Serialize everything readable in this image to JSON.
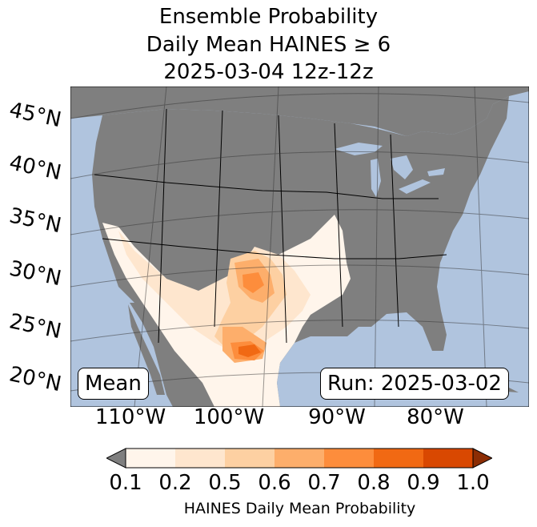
{
  "title": {
    "line1": "Ensemble Probability",
    "line2": "Daily Mean HAINES ≥ 6",
    "line3": "2025-03-04 12z-12z"
  },
  "map": {
    "ocean_color": "#b0c4de",
    "land_color": "#7f7f7f",
    "lat_labels": [
      "45°N",
      "40°N",
      "35°N",
      "30°N",
      "25°N",
      "20°N"
    ],
    "lon_labels": [
      "110°W",
      "100°W",
      "90°W",
      "80°W"
    ],
    "stat_label": "Mean",
    "run_label": "Run: 2025-03-02"
  },
  "colorbar": {
    "ticks": [
      "0.1",
      "0.2",
      "0.5",
      "0.6",
      "0.7",
      "0.8",
      "0.9",
      "1.0"
    ],
    "colors": [
      "#fff5eb",
      "#fee6ce",
      "#fdd0a2",
      "#fdae6b",
      "#fd8d3c",
      "#f16913",
      "#d94801"
    ],
    "under_color": "#7f7f7f",
    "over_color": "#8c2d04",
    "label": "HAINES Daily Mean Probability"
  }
}
